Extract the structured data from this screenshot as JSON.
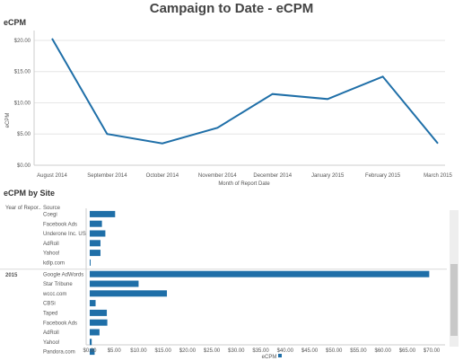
{
  "page_title": "Campaign to Date - eCPM",
  "section1_title": "eCPM",
  "section2_title": "eCPM by Site",
  "chart_data": [
    {
      "type": "line",
      "title": "",
      "xlabel": "Month of Report Date",
      "ylabel": "eCPM",
      "categories": [
        "August 2014",
        "September 2014",
        "October 2014",
        "November 2014",
        "December 2014",
        "January 2015",
        "February 2015",
        "March 2015"
      ],
      "values": [
        20.3,
        5.0,
        3.5,
        6.0,
        11.4,
        10.6,
        14.2,
        3.5
      ],
      "yticks": [
        "$0.00",
        "$5.00",
        "$10.00",
        "$15.00",
        "$20.00"
      ],
      "ylim": [
        0,
        21
      ],
      "color": "#1f6fa8",
      "grid": true
    },
    {
      "type": "bar",
      "orientation": "horizontal",
      "xlabel": "eCPM",
      "column_headers": [
        "Year of Repor..",
        "Source"
      ],
      "groups": [
        {
          "year": "",
          "rows": [
            {
              "label": "Coegi",
              "value": 5.2
            },
            {
              "label": "Facebook Ads",
              "value": 2.5
            },
            {
              "label": "Underone Inc. US",
              "value": 3.2
            },
            {
              "label": "AdRoll",
              "value": 2.2
            },
            {
              "label": "Yahoo!",
              "value": 2.2
            },
            {
              "label": "kdlp.com",
              "value": 0.1
            }
          ]
        },
        {
          "year": "2015",
          "rows": [
            {
              "label": "Google AdWords",
              "value": 69.5
            },
            {
              "label": "Star Tribune",
              "value": 10.0
            },
            {
              "label": "wccc.com",
              "value": 15.8
            },
            {
              "label": "CBSi",
              "value": 1.2
            },
            {
              "label": "Taped",
              "value": 3.5
            },
            {
              "label": "Facebook Ads",
              "value": 3.6
            },
            {
              "label": "AdRoll",
              "value": 2.0
            },
            {
              "label": "Yahoo!",
              "value": 0.4
            },
            {
              "label": "Pandora.com",
              "value": 1.0
            }
          ]
        }
      ],
      "xticks": [
        "$0.00",
        "$5.00",
        "$10.00",
        "$15.00",
        "$20.00",
        "$25.00",
        "$30.00",
        "$35.00",
        "$40.00",
        "$45.00",
        "$50.00",
        "$55.00",
        "$60.00",
        "$65.00",
        "$70.00"
      ],
      "xlim": [
        0,
        72
      ],
      "color": "#1f6fa8"
    }
  ],
  "colors": {
    "series": "#1f6fa8",
    "grid": "#e6e6e6",
    "scrollbar": "#c8c8c8"
  }
}
